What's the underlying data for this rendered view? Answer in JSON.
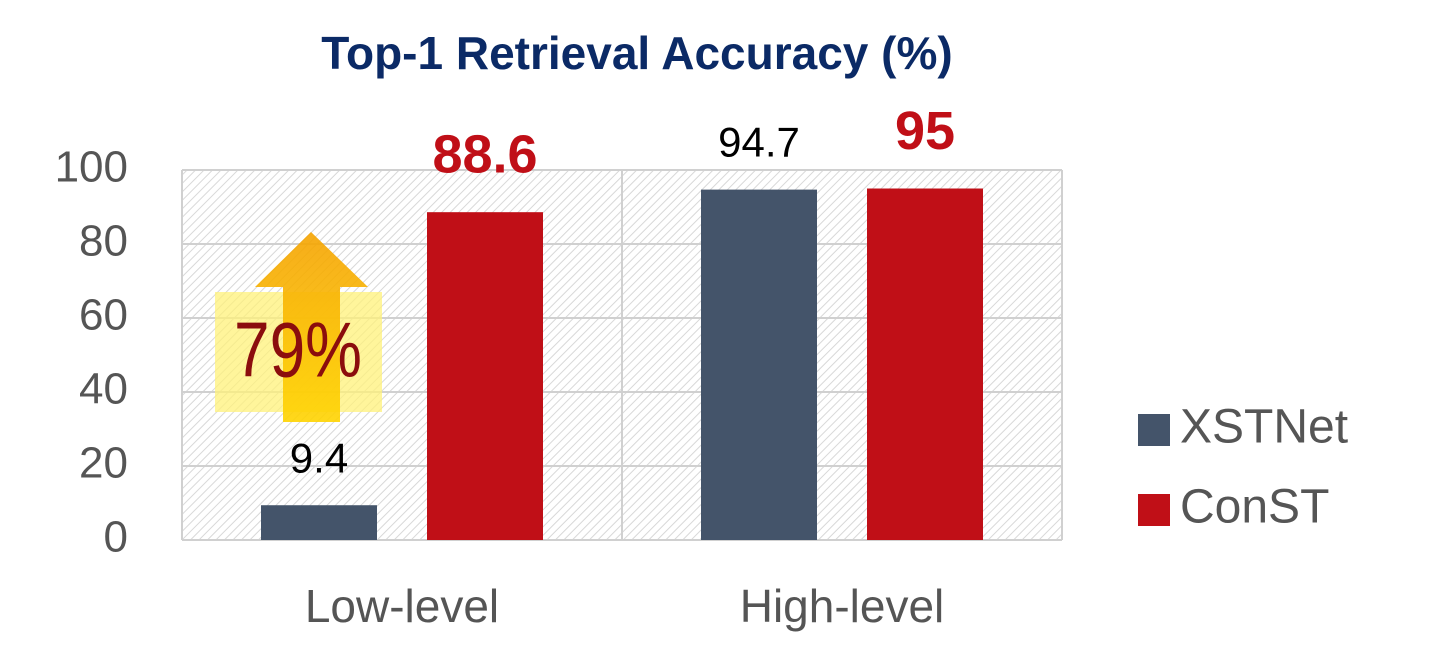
{
  "chart_data": {
    "type": "bar",
    "title": "Top-1 Retrieval Accuracy (%)",
    "categories": [
      "Low-level",
      "High-level"
    ],
    "series": [
      {
        "name": "XSTNet",
        "color": "#44546a",
        "values": [
          9.4,
          94.7
        ]
      },
      {
        "name": "ConST",
        "color": "#c00f17",
        "values": [
          88.6,
          95
        ]
      }
    ],
    "ylim": [
      0,
      100
    ],
    "yticks": [
      0,
      20,
      40,
      60,
      80,
      100
    ],
    "grid": true,
    "legend": "right",
    "annotation": "79%"
  }
}
